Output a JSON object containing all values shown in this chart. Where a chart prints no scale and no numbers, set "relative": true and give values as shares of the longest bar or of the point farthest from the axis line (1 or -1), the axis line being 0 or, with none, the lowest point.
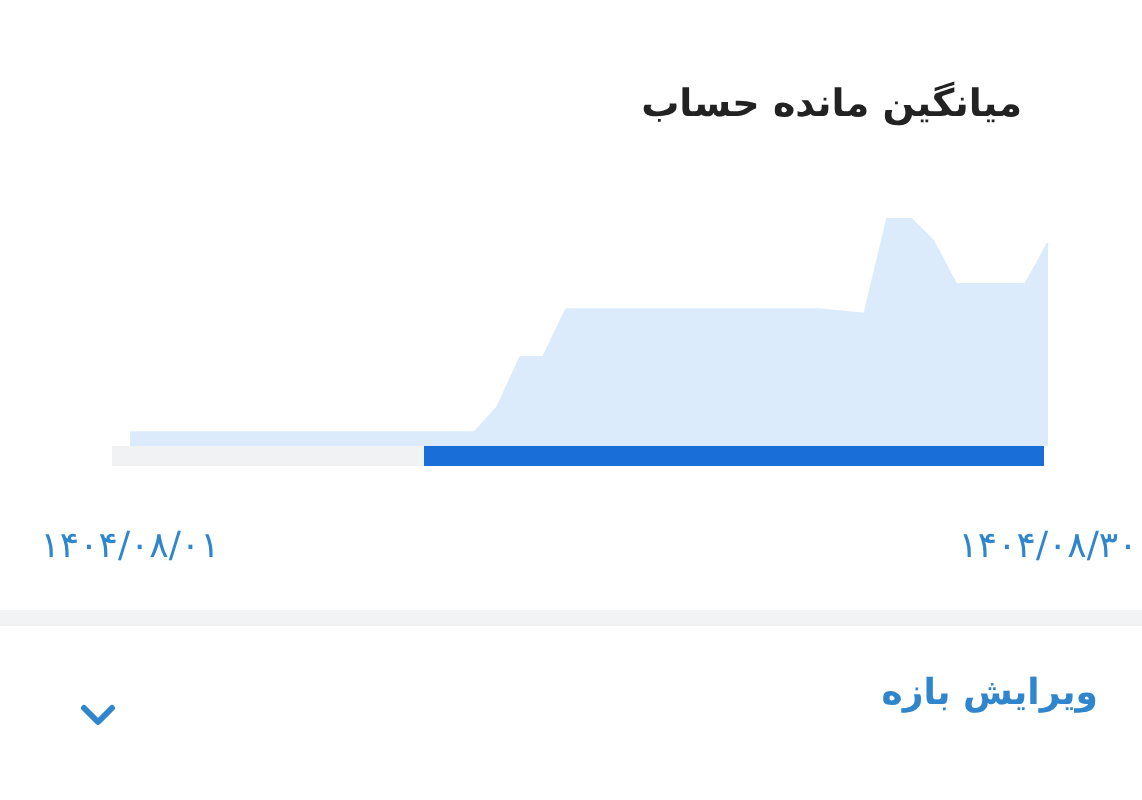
{
  "chart_data": {
    "type": "area",
    "title": "میانگین مانده حساب",
    "relative": true,
    "categories": [
      "۱۴۰۴/۰۸/۰۱",
      null,
      null,
      null,
      null,
      null,
      null,
      null,
      null,
      null,
      null,
      null,
      null,
      null,
      null,
      null,
      null,
      null,
      null,
      null,
      null,
      null,
      null,
      null,
      null,
      null,
      null,
      null,
      null,
      null,
      null,
      null,
      null,
      null,
      null,
      null,
      null,
      null,
      null,
      null,
      "۱۴۰۴/۰۸/۳۰"
    ],
    "values": [
      0.06,
      0.06,
      0.06,
      0.06,
      0.06,
      0.06,
      0.06,
      0.06,
      0.06,
      0.06,
      0.06,
      0.06,
      0.06,
      0.06,
      0.06,
      0.06,
      0.17,
      0.39,
      0.39,
      0.6,
      0.6,
      0.6,
      0.6,
      0.6,
      0.6,
      0.6,
      0.6,
      0.6,
      0.6,
      0.6,
      0.6,
      0.59,
      0.58,
      1,
      1,
      0.9,
      0.71,
      0.71,
      0.71,
      0.71,
      0.89
    ],
    "color": "#dcebfb",
    "annotations": [
      "ویرایش بازه"
    ]
  }
}
